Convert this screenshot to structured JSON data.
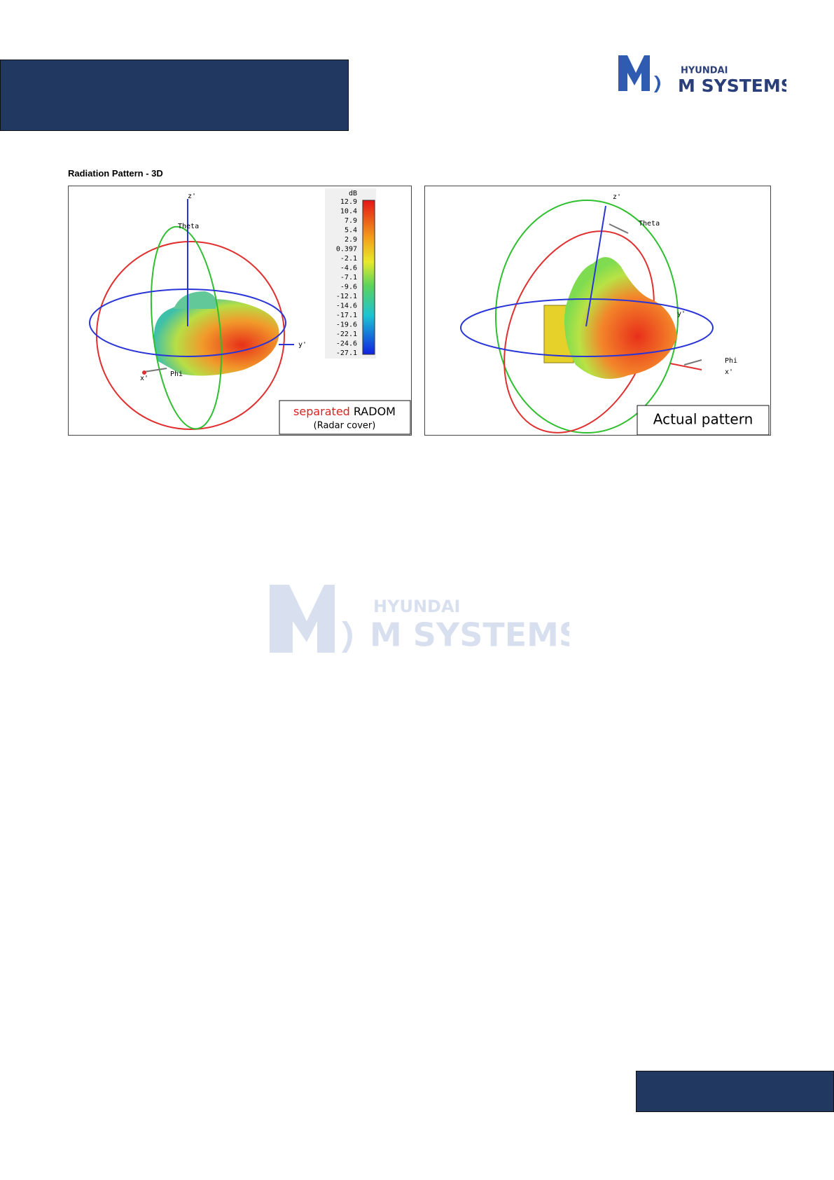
{
  "header": {
    "logo": {
      "brand": "HYUNDAI",
      "name": "M SYSTEMS"
    }
  },
  "section": {
    "title": "Radiation Pattern - 3D"
  },
  "figures": [
    {
      "colorbar": {
        "unit": "dB",
        "labels": [
          "12.9",
          "10.4",
          "7.9",
          "5.4",
          "2.9",
          "0.397",
          "-2.1",
          "-4.6",
          "-7.1",
          "-9.6",
          "-12.1",
          "-14.6",
          "-17.1",
          "-19.6",
          "-22.1",
          "-24.6",
          "-27.1"
        ]
      },
      "axes": {
        "z": "z'",
        "theta": "Theta",
        "y": "y'",
        "x": "x'",
        "phi": "Phi"
      },
      "caption": {
        "highlight": "separated",
        "rest": "RADOM",
        "sub": "(Radar cover)"
      }
    },
    {
      "axes": {
        "z": "z'",
        "theta": "Theta",
        "y": "y'",
        "x": "x'",
        "phi": "Phi"
      },
      "caption": {
        "text": "Actual pattern"
      }
    }
  ],
  "watermark": {
    "brand": "HYUNDAI",
    "name": "M SYSTEMS"
  }
}
